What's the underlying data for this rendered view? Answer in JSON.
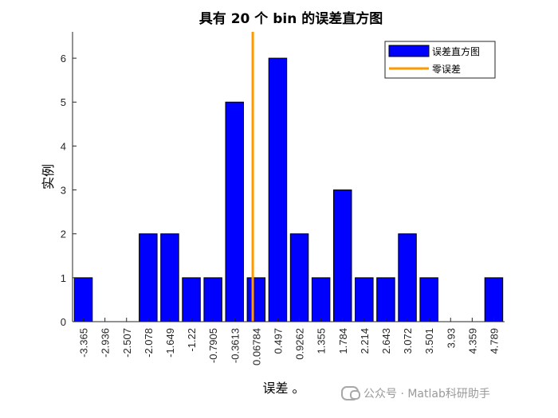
{
  "chart_data": {
    "type": "bar",
    "title": "具有 20 个 bin 的误差直方图",
    "xlabel": "误差 。",
    "ylabel": "实例",
    "categories": [
      "-3.365",
      "-2.936",
      "-2.507",
      "-2.078",
      "-1.649",
      "-1.22",
      "-0.7905",
      "-0.3613",
      "0.06784",
      "0.497",
      "0.9262",
      "1.355",
      "1.784",
      "2.214",
      "2.643",
      "3.072",
      "3.501",
      "3.93",
      "4.359",
      "4.789"
    ],
    "values": [
      1,
      0,
      0,
      2,
      2,
      1,
      1,
      5,
      1,
      6,
      2,
      1,
      3,
      1,
      1,
      2,
      1,
      0,
      0,
      1
    ],
    "ylim": [
      0,
      6.6
    ],
    "yticks": [
      "0",
      "1",
      "2",
      "3",
      "4",
      "5",
      "6"
    ],
    "zero_error_x": 0,
    "series": [
      {
        "name": "误差直方图",
        "color": "#0000ff"
      },
      {
        "name": "零误差",
        "color": "#ff9900"
      }
    ],
    "legend_position": "top-right",
    "grid": false
  },
  "watermark": {
    "text": "公众号 · Matlab科研助手",
    "icon": "wechat-icon"
  }
}
